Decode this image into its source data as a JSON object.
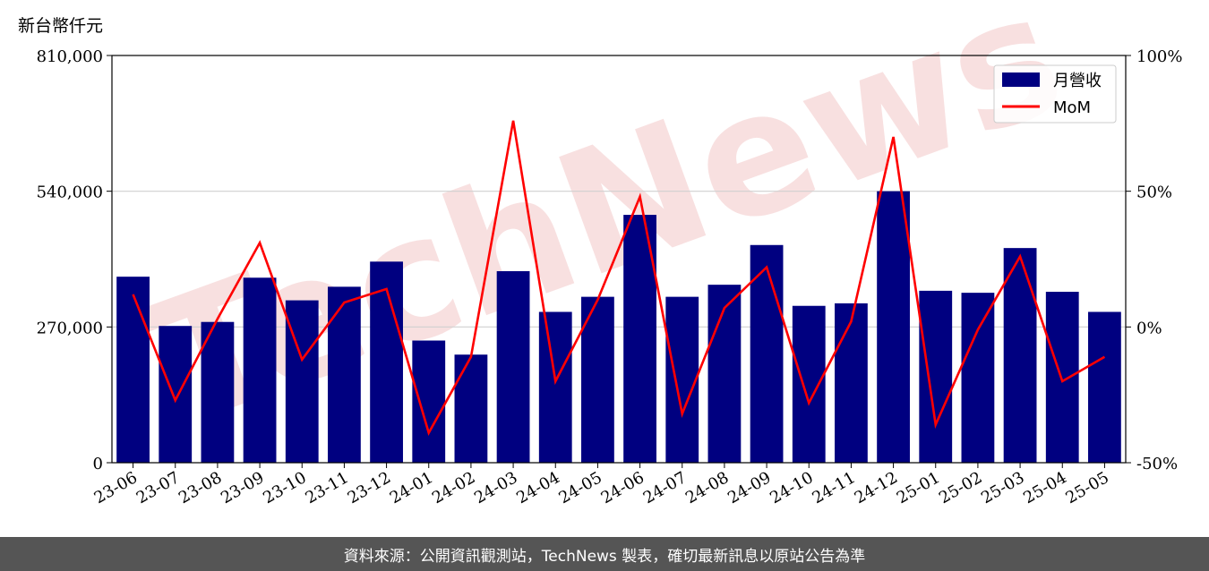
{
  "unit_label": "新台幣仟元",
  "watermark": "TechNews",
  "footer": "資料來源：公開資訊觀測站，TechNews 製表，確切最新訊息以原站公告為準",
  "chart_data": {
    "type": "bar+line",
    "categories": [
      "23-06",
      "23-07",
      "23-08",
      "23-09",
      "23-10",
      "23-11",
      "23-12",
      "24-01",
      "24-02",
      "24-03",
      "24-04",
      "24-05",
      "24-06",
      "24-07",
      "24-08",
      "24-09",
      "24-10",
      "24-11",
      "24-12",
      "25-01",
      "25-02",
      "25-03",
      "25-04",
      "25-05"
    ],
    "series": [
      {
        "name": "月營收",
        "type": "bar",
        "axis": "left",
        "color": "#000080",
        "values": [
          370000,
          272000,
          280000,
          368000,
          323000,
          350000,
          400000,
          243000,
          215000,
          381000,
          300000,
          330000,
          493000,
          330000,
          354000,
          433000,
          312000,
          317000,
          540000,
          342000,
          338000,
          427000,
          340000,
          300000
        ]
      },
      {
        "name": "MoM",
        "type": "line",
        "axis": "right",
        "color": "#ff0000",
        "unit": "%",
        "values": [
          12,
          -27,
          3,
          31,
          -12,
          9,
          14,
          -39,
          -11,
          76,
          -20,
          10,
          48,
          -32,
          7,
          22,
          -28,
          2,
          70,
          -36,
          -1,
          26,
          -20,
          -11
        ]
      }
    ],
    "y_left": {
      "min": 0,
      "max": 810000,
      "ticks": [
        0,
        270000,
        540000,
        810000
      ],
      "tick_labels": [
        "0",
        "270,000",
        "540,000",
        "810,000"
      ]
    },
    "y_right": {
      "min": -50,
      "max": 100,
      "ticks": [
        -50,
        0,
        50,
        100
      ],
      "tick_labels": [
        "-50%",
        "0%",
        "50%",
        "100%"
      ]
    },
    "grid": "horizontal",
    "legend_position": "top-right"
  }
}
